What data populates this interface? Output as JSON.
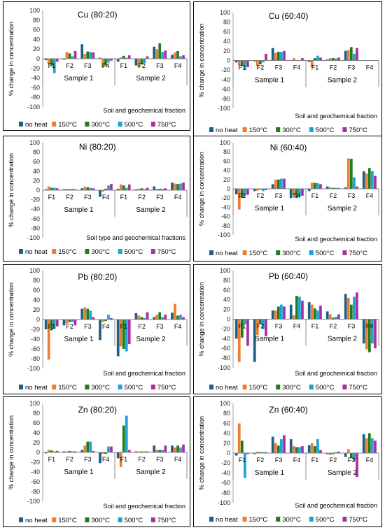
{
  "series_names": [
    "no heat",
    "150°C",
    "300°C",
    "500°C",
    "750°C"
  ],
  "series_colors": [
    "#1f5f85",
    "#ed7d31",
    "#1e7b1e",
    "#1aa3d6",
    "#a6319e"
  ],
  "y_axis_label": "% change in concentration",
  "categories": [
    "F1",
    "F2",
    "F3",
    "F4",
    "F1",
    "F2",
    "F3",
    "F4"
  ],
  "sample_labels": [
    "Sample 1",
    "Sample 2"
  ],
  "chart_data": [
    {
      "type": "bar",
      "title": "Cu (80:20)",
      "xlabel": "Soil and geochemical fraction",
      "ylabel": "% change in concentration",
      "ylim": [
        -100,
        100
      ],
      "categories": [
        "F1",
        "F2",
        "F3",
        "F4",
        "F1",
        "F2",
        "F3",
        "F4"
      ],
      "groups": [
        "Sample 1",
        "Sample 2"
      ],
      "series": [
        {
          "name": "no heat",
          "values": [
            -3,
            -2,
            30,
            2,
            -6,
            -14,
            25,
            8
          ]
        },
        {
          "name": "150°C",
          "values": [
            -12,
            14,
            10,
            -18,
            3,
            -18,
            20,
            13
          ]
        },
        {
          "name": "300°C",
          "values": [
            -15,
            11,
            15,
            -14,
            6,
            -12,
            32,
            16
          ]
        },
        {
          "name": "500°C",
          "values": [
            -30,
            5,
            14,
            -8,
            2,
            -9,
            14,
            5
          ]
        },
        {
          "name": "750°C",
          "values": [
            -6,
            16,
            13,
            -4,
            7,
            5,
            17,
            7
          ]
        }
      ]
    },
    {
      "type": "bar",
      "title": "Cu (60:40)",
      "xlabel": "Soil and geochemical fraction",
      "ylabel": "% change in concentration",
      "ylim": [
        -100,
        100
      ],
      "categories": [
        "F1",
        "F2",
        "F3",
        "F4",
        "F1",
        "F2",
        "F3",
        "F4"
      ],
      "groups": [
        "Sample 1",
        "Sample 2"
      ],
      "series": [
        {
          "name": "no heat",
          "values": [
            -4,
            -2,
            26,
            0,
            -3,
            2,
            20,
            0
          ]
        },
        {
          "name": "150°C",
          "values": [
            -10,
            -12,
            16,
            5,
            -14,
            5,
            22,
            0
          ]
        },
        {
          "name": "300°C",
          "values": [
            -12,
            -8,
            18,
            0,
            5,
            5,
            28,
            0
          ]
        },
        {
          "name": "500°C",
          "values": [
            -20,
            -4,
            18,
            0,
            10,
            4,
            14,
            0
          ]
        },
        {
          "name": "750°C",
          "values": [
            -14,
            14,
            20,
            5,
            6,
            6,
            26,
            0
          ]
        }
      ]
    },
    {
      "type": "bar",
      "title": "Ni (80:20)",
      "xlabel": "Soil type and geochemical fractions",
      "ylabel": "% change in concentration",
      "ylim": [
        -100,
        100
      ],
      "categories": [
        "F1",
        "F2",
        "F3",
        "F4",
        "F1",
        "F2",
        "F3",
        "F4"
      ],
      "groups": [
        "Sample 1",
        "Sample 2"
      ],
      "series": [
        {
          "name": "no heat",
          "values": [
            2,
            2,
            4,
            -14,
            3,
            2,
            8,
            16
          ]
        },
        {
          "name": "150°C",
          "values": [
            8,
            3,
            7,
            -3,
            12,
            3,
            3,
            14
          ]
        },
        {
          "name": "300°C",
          "values": [
            5,
            2,
            6,
            3,
            10,
            4,
            3,
            13
          ]
        },
        {
          "name": "500°C",
          "values": [
            5,
            3,
            5,
            10,
            5,
            2,
            3,
            14
          ]
        },
        {
          "name": "750°C",
          "values": [
            4,
            2,
            4,
            13,
            12,
            5,
            4,
            16
          ]
        }
      ]
    },
    {
      "type": "bar",
      "title": "Ni (60:40)",
      "xlabel": "Soil and geochemical fraction",
      "ylabel": "% change in concentration",
      "ylim": [
        -100,
        100
      ],
      "categories": [
        "F1",
        "F2",
        "F3",
        "F4",
        "F1",
        "F2",
        "F3",
        "F4"
      ],
      "groups": [
        "Sample 1",
        "Sample 2"
      ],
      "series": [
        {
          "name": "no heat",
          "values": [
            -12,
            -5,
            10,
            -20,
            -5,
            5,
            3,
            38
          ]
        },
        {
          "name": "150°C",
          "values": [
            -45,
            -4,
            20,
            -14,
            13,
            3,
            66,
            33
          ]
        },
        {
          "name": "300°C",
          "values": [
            -20,
            -2,
            20,
            -20,
            13,
            2,
            65,
            45
          ]
        },
        {
          "name": "500°C",
          "values": [
            -16,
            -5,
            22,
            -17,
            12,
            2,
            25,
            38
          ]
        },
        {
          "name": "750°C",
          "values": [
            -13,
            -3,
            22,
            -15,
            10,
            2,
            5,
            28
          ]
        }
      ]
    },
    {
      "type": "bar",
      "title": "Pb (80:20)",
      "xlabel": "Soil and geochemical fraction",
      "ylabel": "% change in concentration",
      "ylim": [
        -100,
        100
      ],
      "categories": [
        "F1",
        "F2",
        "F3",
        "F4",
        "F1",
        "F2",
        "F3",
        "F4"
      ],
      "groups": [
        "Sample 1",
        "Sample 2"
      ],
      "series": [
        {
          "name": "no heat",
          "values": [
            -20,
            -12,
            22,
            -42,
            -75,
            13,
            5,
            14
          ]
        },
        {
          "name": "150°C",
          "values": [
            -82,
            -8,
            25,
            -5,
            -55,
            8,
            10,
            32
          ]
        },
        {
          "name": "300°C",
          "values": [
            -22,
            -5,
            22,
            -3,
            -60,
            5,
            15,
            8
          ]
        },
        {
          "name": "500°C",
          "values": [
            -18,
            -5,
            18,
            10,
            -65,
            3,
            5,
            10
          ]
        },
        {
          "name": "750°C",
          "values": [
            -14,
            -12,
            5,
            3,
            -50,
            15,
            10,
            5
          ]
        }
      ]
    },
    {
      "type": "bar",
      "title": "Pb (60:40)",
      "xlabel": "Soil and geochemical fraction",
      "ylabel": "% change in concentration",
      "ylim": [
        -100,
        100
      ],
      "categories": [
        "F1",
        "F2",
        "F3",
        "F4",
        "F1",
        "F2",
        "F3",
        "F4"
      ],
      "groups": [
        "Sample 1",
        "Sample 2"
      ],
      "series": [
        {
          "name": "no heat",
          "values": [
            -40,
            -88,
            18,
            30,
            35,
            16,
            52,
            -50
          ]
        },
        {
          "name": "150°C",
          "values": [
            -88,
            -32,
            18,
            8,
            30,
            10,
            44,
            -62
          ]
        },
        {
          "name": "300°C",
          "values": [
            -38,
            -10,
            26,
            48,
            22,
            3,
            30,
            -68
          ]
        },
        {
          "name": "500°C",
          "values": [
            -10,
            -20,
            30,
            46,
            18,
            5,
            46,
            -50
          ]
        },
        {
          "name": "750°C",
          "values": [
            -55,
            -35,
            26,
            38,
            28,
            10,
            55,
            -60
          ]
        }
      ]
    },
    {
      "type": "bar",
      "title": "Zn (80:20)",
      "xlabel": "Soil and geochemical fraction",
      "ylabel": "% change in concentration",
      "ylim": [
        -100,
        100
      ],
      "categories": [
        "F1",
        "F2",
        "F3",
        "F4",
        "F1",
        "F2",
        "F3",
        "F4"
      ],
      "groups": [
        "Sample 1",
        "Sample 2"
      ],
      "series": [
        {
          "name": "no heat",
          "values": [
            -2,
            2,
            5,
            -22,
            -12,
            2,
            14,
            14
          ]
        },
        {
          "name": "150°C",
          "values": [
            5,
            2,
            14,
            -3,
            -30,
            2,
            5,
            10
          ]
        },
        {
          "name": "300°C",
          "values": [
            4,
            3,
            22,
            -3,
            55,
            2,
            5,
            14
          ]
        },
        {
          "name": "500°C",
          "values": [
            2,
            2,
            22,
            12,
            75,
            2,
            5,
            10
          ]
        },
        {
          "name": "750°C",
          "values": [
            3,
            2,
            3,
            12,
            5,
            2,
            14,
            16
          ]
        }
      ]
    },
    {
      "type": "bar",
      "title": "Zn (60:40)",
      "xlabel": "Soil and geochemical fraction",
      "ylabel": "% change in concentration",
      "ylim": [
        -100,
        100
      ],
      "categories": [
        "F1",
        "F2",
        "F3",
        "F4",
        "F1",
        "F2",
        "F3",
        "F4"
      ],
      "groups": [
        "Sample 1",
        "Sample 2"
      ],
      "series": [
        {
          "name": "no heat",
          "values": [
            -5,
            -2,
            33,
            28,
            16,
            -2,
            -8,
            38
          ]
        },
        {
          "name": "150°C",
          "values": [
            60,
            3,
            20,
            14,
            20,
            -4,
            8,
            30
          ]
        },
        {
          "name": "300°C",
          "values": [
            25,
            2,
            15,
            12,
            14,
            -2,
            -10,
            40
          ]
        },
        {
          "name": "500°C",
          "values": [
            -50,
            2,
            28,
            12,
            28,
            2,
            -15,
            30
          ]
        },
        {
          "name": "750°C",
          "values": [
            -2,
            2,
            36,
            14,
            6,
            3,
            -48,
            25
          ]
        }
      ]
    }
  ]
}
